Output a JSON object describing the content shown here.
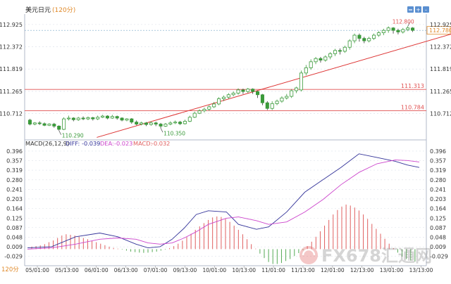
{
  "header": {
    "symbol": "美元日元",
    "timeframe": "(120分)",
    "bottom_timeframe": "120分"
  },
  "macd_header": {
    "params": "MACD(26,12,9)",
    "diff_label": "DIFF:",
    "diff_value": "-0.039",
    "dea_label": "DEA:",
    "dea_value": "-0.023",
    "macd_label": "MACD:",
    "macd_value": "-0.032"
  },
  "watermark": {
    "text": "FX678汇通网"
  },
  "toolbar": {
    "buttons": [
      "=",
      "+",
      "-"
    ]
  },
  "colors": {
    "up": "#3a9a3a",
    "down": "#333333",
    "level": "#e05050",
    "trend": "#dd3333",
    "diff": "#333399",
    "dea": "#cc44cc",
    "hist_pos": "#e06060",
    "hist_neg": "#55aa55",
    "axis_text": "#333333"
  },
  "chart_data": [
    {
      "type": "candlestick",
      "title": "美元日元(120分)",
      "y_ticks": [
        "112.925",
        "112.372",
        "111.819",
        "111.265",
        "110.712"
      ],
      "ylim": [
        110.18,
        113.15
      ],
      "current_price": "112.780",
      "horizontal_levels": [
        "111.313",
        "110.784"
      ],
      "annotations": [
        "110.290",
        "110.350",
        "112.800"
      ],
      "trendline": [
        [
          23,
          110.12
        ],
        [
          148,
          112.88
        ]
      ],
      "candles": [
        [
          110.55,
          110.45,
          110.58,
          110.42
        ],
        [
          110.45,
          110.48,
          110.5,
          110.42
        ],
        [
          110.48,
          110.46,
          110.52,
          110.43
        ],
        [
          110.46,
          110.42,
          110.49,
          110.4
        ],
        [
          110.42,
          110.45,
          110.47,
          110.4
        ],
        [
          110.45,
          110.4,
          110.48,
          110.36
        ],
        [
          110.4,
          110.32,
          110.42,
          110.29
        ],
        [
          110.32,
          110.58,
          110.62,
          110.3
        ],
        [
          110.58,
          110.6,
          110.66,
          110.54
        ],
        [
          110.6,
          110.56,
          110.62,
          110.52
        ],
        [
          110.56,
          110.6,
          110.63,
          110.53
        ],
        [
          110.6,
          110.58,
          110.64,
          110.55
        ],
        [
          110.58,
          110.61,
          110.64,
          110.55
        ],
        [
          110.61,
          110.58,
          110.63,
          110.54
        ],
        [
          110.58,
          110.62,
          110.66,
          110.55
        ],
        [
          110.62,
          110.65,
          110.68,
          110.6
        ],
        [
          110.65,
          110.6,
          110.67,
          110.57
        ],
        [
          110.6,
          110.64,
          110.68,
          110.58
        ],
        [
          110.64,
          110.6,
          110.66,
          110.56
        ],
        [
          110.6,
          110.55,
          110.62,
          110.52
        ],
        [
          110.55,
          110.58,
          110.6,
          110.52
        ],
        [
          110.58,
          110.5,
          110.6,
          110.46
        ],
        [
          110.5,
          110.45,
          110.54,
          110.42
        ],
        [
          110.45,
          110.48,
          110.51,
          110.42
        ],
        [
          110.48,
          110.44,
          110.5,
          110.4
        ],
        [
          110.44,
          110.48,
          110.52,
          110.41
        ],
        [
          110.48,
          110.45,
          110.51,
          110.4
        ],
        [
          110.45,
          110.4,
          110.48,
          110.35
        ],
        [
          110.4,
          110.45,
          110.48,
          110.38
        ],
        [
          110.45,
          110.48,
          110.52,
          110.42
        ],
        [
          110.48,
          110.5,
          110.54,
          110.45
        ],
        [
          110.5,
          110.46,
          110.53,
          110.43
        ],
        [
          110.46,
          110.52,
          110.56,
          110.44
        ],
        [
          110.52,
          110.62,
          110.66,
          110.5
        ],
        [
          110.62,
          110.72,
          110.76,
          110.6
        ],
        [
          110.72,
          110.78,
          110.82,
          110.7
        ],
        [
          110.78,
          110.82,
          110.86,
          110.74
        ],
        [
          110.82,
          110.88,
          110.92,
          110.78
        ],
        [
          110.88,
          110.95,
          111.0,
          110.85
        ],
        [
          110.95,
          111.08,
          111.12,
          110.92
        ],
        [
          111.08,
          111.12,
          111.16,
          111.02
        ],
        [
          111.12,
          111.18,
          111.22,
          111.08
        ],
        [
          111.18,
          111.22,
          111.26,
          111.14
        ],
        [
          111.22,
          111.3,
          111.34,
          111.18
        ],
        [
          111.3,
          111.26,
          111.33,
          111.2
        ],
        [
          111.26,
          111.32,
          111.35,
          111.22
        ],
        [
          111.32,
          111.26,
          111.34,
          111.2
        ],
        [
          111.26,
          111.18,
          111.28,
          111.1
        ],
        [
          111.18,
          110.98,
          111.2,
          110.92
        ],
        [
          110.98,
          110.84,
          111.02,
          110.8
        ],
        [
          110.84,
          110.96,
          111.02,
          110.8
        ],
        [
          110.96,
          111.02,
          111.06,
          110.92
        ],
        [
          111.02,
          111.1,
          111.14,
          110.98
        ],
        [
          111.1,
          111.14,
          111.2,
          111.06
        ],
        [
          111.14,
          111.28,
          111.32,
          111.1
        ],
        [
          111.28,
          111.35,
          111.38,
          111.22
        ],
        [
          111.3,
          111.72,
          111.78,
          111.26
        ],
        [
          111.72,
          111.85,
          111.92,
          111.66
        ],
        [
          111.85,
          112.0,
          112.06,
          111.8
        ],
        [
          112.0,
          112.08,
          112.12,
          111.94
        ],
        [
          112.08,
          112.04,
          112.12,
          111.98
        ],
        [
          112.04,
          112.12,
          112.16,
          112.0
        ],
        [
          112.12,
          112.2,
          112.24,
          112.06
        ],
        [
          112.2,
          112.28,
          112.32,
          112.14
        ],
        [
          112.28,
          112.26,
          112.33,
          112.18
        ],
        [
          112.26,
          112.36,
          112.4,
          112.22
        ],
        [
          112.36,
          112.52,
          112.56,
          112.3
        ],
        [
          112.52,
          112.66,
          112.7,
          112.46
        ],
        [
          112.66,
          112.58,
          112.7,
          112.5
        ],
        [
          112.58,
          112.52,
          112.62,
          112.46
        ],
        [
          112.52,
          112.58,
          112.62,
          112.48
        ],
        [
          112.58,
          112.66,
          112.7,
          112.54
        ],
        [
          112.66,
          112.72,
          112.76,
          112.62
        ],
        [
          112.72,
          112.78,
          112.82,
          112.66
        ],
        [
          112.78,
          112.84,
          112.88,
          112.72
        ],
        [
          112.84,
          112.78,
          112.86,
          112.7
        ],
        [
          112.78,
          112.74,
          112.82,
          112.68
        ],
        [
          112.74,
          112.8,
          112.84,
          112.7
        ],
        [
          112.8,
          112.84,
          112.88,
          112.76
        ],
        [
          112.84,
          112.78,
          112.86,
          112.74
        ]
      ]
    },
    {
      "type": "macd",
      "title": "MACD(26,12,9)",
      "y_ticks": [
        "0.396",
        "0.357",
        "0.319",
        "0.280",
        "0.241",
        "0.203",
        "0.164",
        "0.125",
        "0.087",
        "0.048",
        "0.009",
        "-0.029"
      ],
      "ylim": [
        -0.05,
        0.41
      ],
      "x_ticks": [
        "05/01:00",
        "05/13:00",
        "06/01:00",
        "06/13:00",
        "07/01:00",
        "09/13:00",
        "10/01:00",
        "10/13:00",
        "11/01:00",
        "11/13:00",
        "12/01:00",
        "12/13:00",
        "13/01:00",
        "13/13:00"
      ],
      "series": [
        {
          "name": "DIFF",
          "points": [
            [
              0,
              0.005
            ],
            [
              8,
              0.01
            ],
            [
              16,
              0.05
            ],
            [
              24,
              0.065
            ],
            [
              30,
              0.05
            ],
            [
              36,
              0.02
            ],
            [
              40,
              0.005
            ],
            [
              44,
              0.01
            ],
            [
              48,
              0.04
            ],
            [
              52,
              0.085
            ],
            [
              56,
              0.14
            ],
            [
              60,
              0.155
            ],
            [
              66,
              0.15
            ],
            [
              70,
              0.1
            ],
            [
              76,
              0.08
            ],
            [
              80,
              0.09
            ],
            [
              86,
              0.15
            ],
            [
              92,
              0.23
            ],
            [
              98,
              0.28
            ],
            [
              104,
              0.33
            ],
            [
              110,
              0.385
            ],
            [
              116,
              0.37
            ],
            [
              122,
              0.355
            ],
            [
              126,
              0.34
            ],
            [
              130,
              0.33
            ]
          ]
        },
        {
          "name": "DEA",
          "points": [
            [
              0,
              0.0
            ],
            [
              8,
              0.005
            ],
            [
              16,
              0.02
            ],
            [
              24,
              0.04
            ],
            [
              30,
              0.045
            ],
            [
              36,
              0.04
            ],
            [
              40,
              0.025
            ],
            [
              44,
              0.02
            ],
            [
              48,
              0.025
            ],
            [
              52,
              0.045
            ],
            [
              56,
              0.07
            ],
            [
              60,
              0.1
            ],
            [
              66,
              0.125
            ],
            [
              70,
              0.13
            ],
            [
              76,
              0.115
            ],
            [
              80,
              0.1
            ],
            [
              86,
              0.11
            ],
            [
              92,
              0.15
            ],
            [
              98,
              0.2
            ],
            [
              104,
              0.26
            ],
            [
              110,
              0.31
            ],
            [
              116,
              0.345
            ],
            [
              122,
              0.36
            ],
            [
              126,
              0.358
            ],
            [
              130,
              0.352
            ]
          ]
        }
      ],
      "histogram": [
        0.01,
        0.012,
        0.015,
        0.02,
        0.028,
        0.035,
        0.045,
        0.055,
        0.06,
        0.058,
        0.055,
        0.05,
        0.045,
        0.04,
        0.034,
        0.028,
        0.022,
        0.016,
        0.01,
        0.005,
        0.002,
        -0.002,
        -0.006,
        -0.01,
        -0.012,
        -0.014,
        -0.015,
        -0.014,
        -0.012,
        -0.01,
        -0.006,
        -0.002,
        0.004,
        0.012,
        0.022,
        0.034,
        0.048,
        0.062,
        0.078,
        0.092,
        0.105,
        0.118,
        0.128,
        0.132,
        0.13,
        0.122,
        0.11,
        0.095,
        0.078,
        0.06,
        0.04,
        0.02,
        0.002,
        -0.018,
        -0.036,
        -0.052,
        -0.06,
        -0.06,
        -0.056,
        -0.048,
        -0.04,
        -0.028,
        -0.016,
        -0.004,
        0.012,
        0.03,
        0.05,
        0.072,
        0.095,
        0.118,
        0.14,
        0.158,
        0.172,
        0.18,
        0.176,
        0.168,
        0.156,
        0.14,
        0.122,
        0.102,
        0.082,
        0.062,
        0.042,
        0.022,
        0.004,
        -0.014,
        -0.03,
        -0.04,
        -0.046,
        -0.05
      ]
    }
  ]
}
